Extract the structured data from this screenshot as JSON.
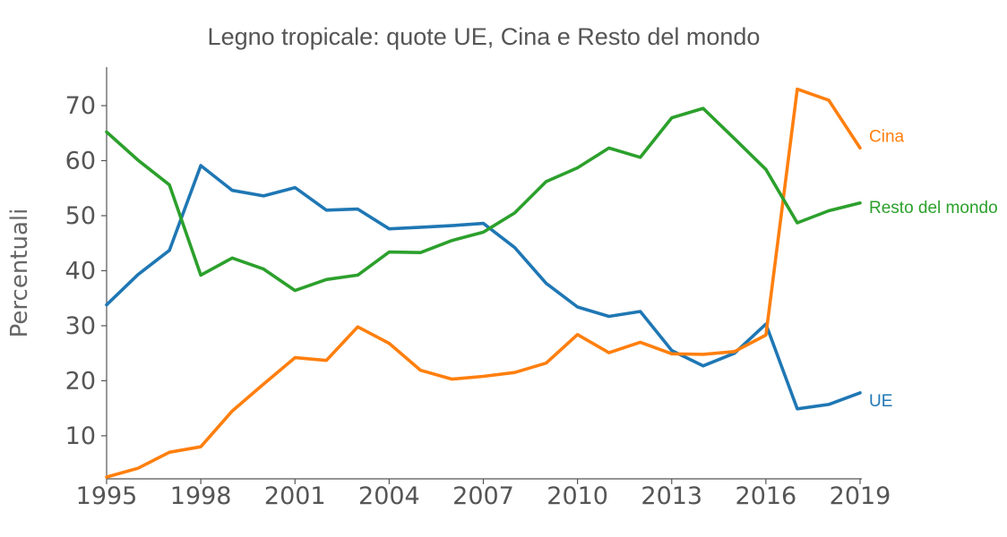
{
  "chart_data": {
    "type": "line",
    "title": "Legno tropicale: quote UE, Cina e Resto del mondo",
    "xlabel": "",
    "ylabel": "Percentuali",
    "xlim": [
      1995,
      2019
    ],
    "ylim": [
      2.5,
      77
    ],
    "x": [
      1995,
      1996,
      1997,
      1998,
      1999,
      2000,
      2001,
      2002,
      2003,
      2004,
      2005,
      2006,
      2007,
      2008,
      2009,
      2010,
      2011,
      2012,
      2013,
      2014,
      2015,
      2016,
      2017,
      2018,
      2019
    ],
    "x_ticks": [
      "1995",
      "1998",
      "2001",
      "2004",
      "2007",
      "2010",
      "2013",
      "2016",
      "2019"
    ],
    "y_ticks": [
      "10",
      "20",
      "30",
      "40",
      "50",
      "60",
      "70"
    ],
    "grid": false,
    "legend": "inline-right",
    "series": [
      {
        "name": "UE",
        "color": "#1f77b4",
        "values": [
          33.8,
          39.3,
          43.7,
          59.1,
          54.6,
          53.6,
          55.1,
          51.0,
          51.2,
          47.6,
          47.9,
          48.2,
          48.6,
          44.2,
          37.7,
          33.4,
          31.7,
          32.6,
          25.5,
          22.7,
          25.0,
          30.3,
          14.9,
          15.7,
          17.8
        ]
      },
      {
        "name": "Cina",
        "color": "#ff7f0e",
        "values": [
          2.5,
          4.1,
          7.0,
          8.0,
          14.5,
          19.4,
          24.2,
          23.7,
          29.8,
          26.8,
          21.9,
          20.3,
          20.8,
          21.5,
          23.2,
          28.4,
          25.1,
          27.0,
          24.9,
          24.8,
          25.3,
          28.3,
          73.0,
          71.0,
          62.3
        ]
      },
      {
        "name": "Resto del mondo",
        "color": "#2ca02c",
        "values": [
          65.2,
          60.1,
          55.6,
          39.2,
          42.3,
          40.3,
          36.4,
          38.4,
          39.2,
          43.4,
          43.3,
          45.5,
          47.0,
          50.5,
          56.2,
          58.7,
          62.3,
          60.6,
          67.8,
          69.5,
          64.0,
          58.4,
          48.7,
          50.9,
          52.3
        ]
      }
    ]
  }
}
